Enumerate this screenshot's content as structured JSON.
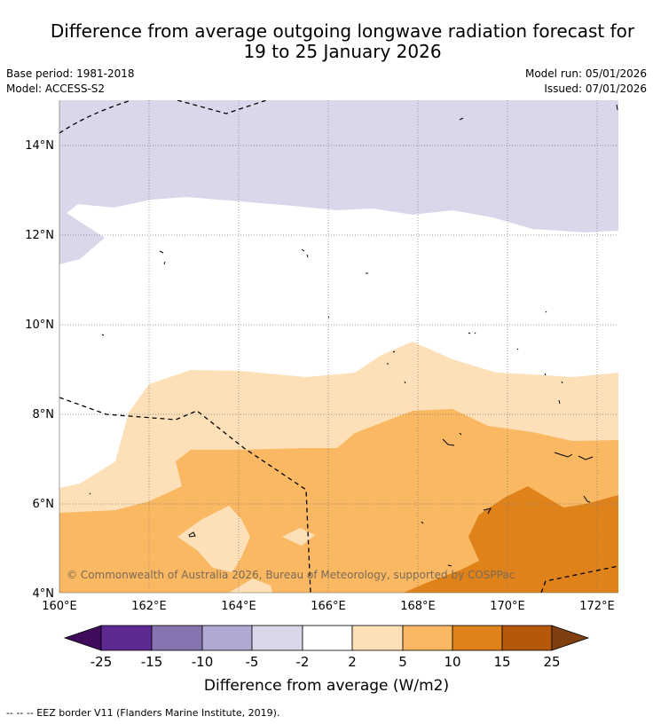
{
  "title": {
    "line1": "Difference from average outgoing longwave radiation forecast for",
    "line2": "19 to 25 January 2026"
  },
  "info": {
    "base_period": "Base period: 1981-2018",
    "model": "Model: ACCESS-S2",
    "model_run": "Model run: 05/01/2026",
    "issued": "Issued: 07/01/2026"
  },
  "map": {
    "lat_labels": [
      "14°N",
      "12°N",
      "10°N",
      "8°N",
      "6°N",
      "4°N"
    ],
    "lon_labels": [
      "160°E",
      "162°E",
      "164°E",
      "166°E",
      "168°E",
      "170°E",
      "172°E"
    ],
    "copyright": "© Commonwealth of Australia 2026, Bureau of Meteorology, supported by COSPPac"
  },
  "colorbar": {
    "ticks": [
      "-25",
      "-15",
      "-10",
      "-5",
      "-2",
      "2",
      "5",
      "10",
      "15",
      "25"
    ],
    "label": "Difference from average (W/m2)",
    "colors": [
      "#3f0b5a",
      "#5e2a91",
      "#8674b0",
      "#b0a9d3",
      "#d8d8ea",
      "#ffffff",
      "#fde0b8",
      "#fab863",
      "#e0821a",
      "#b5580a",
      "#7f3f0f"
    ]
  },
  "footer": "-- -- -- EEZ border V11 (Flanders Marine Institute, 2019)."
}
